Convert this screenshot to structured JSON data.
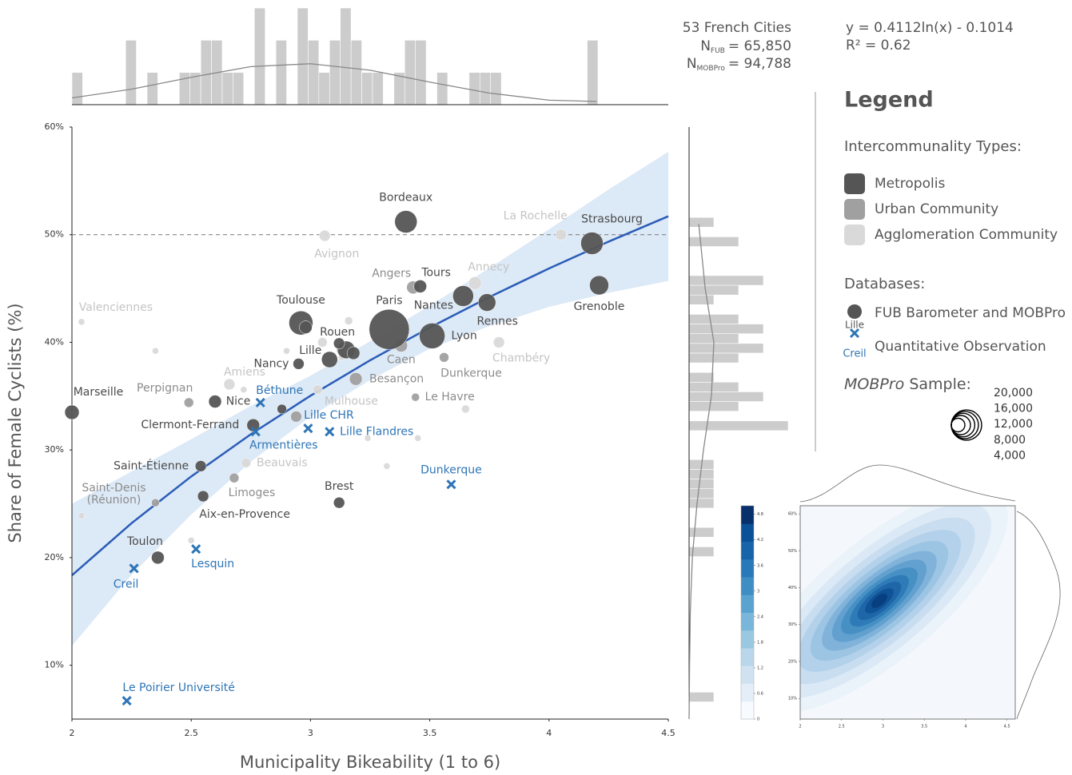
{
  "chart_data": {
    "type": "scatter",
    "x_label": "Municipality Bikeability (1 to 6)",
    "y_label": "Share of Female Cyclists (%)",
    "xlim": [
      2,
      4.5
    ],
    "ylim": [
      5,
      60
    ],
    "xticks": [
      2,
      2.5,
      3,
      3.5,
      4,
      4.5
    ],
    "yticks": [
      {
        "value": 10,
        "label": "10%"
      },
      {
        "value": 20,
        "label": "20%"
      },
      {
        "value": 30,
        "label": "30%"
      },
      {
        "value": 40,
        "label": "40%"
      },
      {
        "value": 50,
        "label": "50%"
      },
      {
        "value": 60,
        "label": "60%"
      }
    ],
    "hline": 50,
    "series": [
      {
        "name": "Metropolis",
        "color": "#555555",
        "label_color": "#4a4a4a",
        "marker": "circle",
        "x": [
          2.0,
          3.4,
          4.18,
          4.21,
          2.96,
          3.33,
          3.51,
          3.64,
          3.74,
          3.46,
          3.15,
          3.08,
          2.95,
          2.6,
          2.76,
          2.54,
          2.55,
          2.36,
          3.12,
          2.98,
          2.88,
          3.12,
          3.18
        ],
        "values": [
          33.5,
          51.2,
          49.2,
          45.3,
          41.8,
          41.2,
          40.6,
          44.3,
          43.7,
          45.2,
          39.3,
          38.4,
          38.0,
          34.5,
          32.3,
          28.5,
          25.7,
          20.0,
          25.1,
          41.4,
          33.8,
          39.9,
          39.0
        ],
        "sizes": [
          4500,
          10900,
          10900,
          8000,
          12500,
          35000,
          14300,
          9400,
          6700,
          3600,
          6700,
          5600,
          2700,
          3600,
          3600,
          2700,
          2700,
          3600,
          2700,
          3600,
          2000,
          2700,
          3600
        ],
        "labels": [
          "Marseille",
          "Bordeaux",
          "Strasbourg",
          "Grenoble",
          "Toulouse",
          "Paris",
          "Lyon",
          "Nantes",
          "Rennes",
          "Tours",
          "Rouen",
          "Lille",
          "Nancy",
          "Nice",
          "Clermont-Ferrand",
          "Saint-Étienne",
          "Aix-en-Provence",
          "Toulon",
          "Brest",
          null,
          null,
          null,
          null
        ]
      },
      {
        "name": "Urban Community",
        "color": "#a0a0a0",
        "label_color": "#8c8c8c",
        "marker": "circle",
        "x": [
          3.43,
          3.38,
          3.19,
          3.56,
          3.44,
          2.68,
          2.49,
          2.35,
          2.94,
          3.14
        ],
        "values": [
          45.1,
          39.7,
          36.6,
          38.6,
          34.9,
          27.4,
          34.4,
          25.1,
          33.1,
          39.3
        ],
        "sizes": [
          3600,
          3600,
          3600,
          2000,
          1400,
          2000,
          2000,
          1400,
          2700,
          4500
        ],
        "labels": [
          "Angers",
          "Caen",
          "Besançon",
          "Dunkerque",
          "Le Havre",
          "Limoges",
          "Perpignan",
          "Saint-Denis\n(Réunion)",
          null,
          null
        ]
      },
      {
        "name": "Agglomeration Community",
        "color": "#d9d9d9",
        "label_color": "#c4c4c4",
        "marker": "circle",
        "x": [
          4.05,
          3.06,
          3.69,
          3.79,
          2.04,
          2.66,
          2.73,
          3.03,
          2.35,
          2.9,
          3.16,
          3.05,
          2.72,
          3.24,
          3.45,
          3.32,
          3.65,
          2.5,
          2.04,
          3.13
        ],
        "values": [
          50.0,
          49.9,
          45.5,
          40.0,
          41.9,
          36.1,
          28.8,
          35.6,
          39.2,
          39.2,
          42.0,
          40.0,
          35.6,
          31.1,
          31.1,
          28.5,
          33.8,
          21.6,
          23.9,
          38.6
        ],
        "sizes": [
          2700,
          2700,
          3600,
          2700,
          900,
          2700,
          2000,
          2000,
          900,
          900,
          1400,
          2000,
          900,
          900,
          900,
          900,
          1400,
          900,
          900,
          900
        ],
        "labels": [
          "La Rochelle",
          "Avignon",
          "Annecy",
          "Chambéry",
          "Valenciennes",
          "Amiens",
          "Beauvais",
          "Mulhouse",
          null,
          null,
          null,
          null,
          null,
          null,
          null,
          null,
          null,
          null,
          null,
          null
        ]
      },
      {
        "name": "Quantitative Observation",
        "color": "#2e75b6",
        "label_color": "#2e75b6",
        "marker": "x",
        "x": [
          2.79,
          2.99,
          3.08,
          2.77,
          3.59,
          2.52,
          2.26,
          2.23
        ],
        "values": [
          34.4,
          32.0,
          31.7,
          31.7,
          26.8,
          20.8,
          19.0,
          6.7
        ],
        "labels": [
          "Béthune",
          "Lille CHR",
          "Lille Flandres",
          "Armentières",
          "Dunkerque",
          "Lesquin",
          "Creil",
          "Le Poirier Université"
        ]
      }
    ],
    "fit": {
      "color": "#2a5cb8",
      "band_color": "#dce9f6",
      "x": [
        2,
        2.25,
        2.5,
        2.75,
        3,
        3.25,
        3.5,
        3.75,
        4,
        4.25,
        4.5
      ],
      "values": [
        18.36,
        23.2,
        27.54,
        31.46,
        35.04,
        38.33,
        41.37,
        44.21,
        46.86,
        49.36,
        51.71
      ],
      "ci_high": [
        25.0,
        28.0,
        31.0,
        34.1,
        36.9,
        40.1,
        43.4,
        46.9,
        50.5,
        54.2,
        57.7
      ],
      "ci_low": [
        11.8,
        18.4,
        24.0,
        28.9,
        33.1,
        36.5,
        39.4,
        41.5,
        43.3,
        44.6,
        45.7
      ]
    },
    "top_histogram": {
      "type": "histogram",
      "color": "#cccccc",
      "ylim": [
        0,
        3
      ],
      "bins": [
        2,
        2.045,
        2.09,
        2.135,
        2.18,
        2.225,
        2.27,
        2.315,
        2.36,
        2.405,
        2.45,
        2.495,
        2.54,
        2.585,
        2.63,
        2.675,
        2.72,
        2.765,
        2.81,
        2.855,
        2.9,
        2.945,
        2.99,
        3.035,
        3.08,
        3.125,
        3.17,
        3.215,
        3.26,
        3.305,
        3.35,
        3.395,
        3.44,
        3.485,
        3.53,
        3.575,
        3.62,
        3.665,
        3.71,
        3.755,
        3.8,
        3.845,
        3.89,
        3.935,
        3.98,
        4.025,
        4.07,
        4.115,
        4.16,
        4.205
      ],
      "counts": [
        1,
        0,
        0,
        0,
        0,
        2,
        0,
        1,
        0,
        0,
        1,
        1,
        2,
        2,
        1,
        1,
        0,
        3,
        0,
        2,
        0,
        3,
        2,
        1,
        2,
        3,
        2,
        1,
        1,
        0,
        1,
        2,
        2,
        0,
        1,
        0,
        0,
        1,
        1,
        1,
        0,
        0,
        0,
        0,
        0,
        0,
        0,
        0,
        2
      ],
      "kde_x": [
        2,
        2.25,
        2.5,
        2.75,
        3,
        3.25,
        3.5,
        3.75,
        4,
        4.2
      ],
      "kde": [
        0.21,
        0.48,
        0.85,
        1.18,
        1.27,
        1.07,
        0.7,
        0.36,
        0.14,
        0.1
      ]
    },
    "right_histogram": {
      "type": "histogram",
      "color": "#cccccc",
      "xlim": [
        0,
        4
      ],
      "bins": [
        6.6,
        7.5,
        8.4,
        9.3,
        10.2,
        11.1,
        12,
        12.9,
        13.8,
        14.7,
        15.6,
        16.5,
        17.4,
        18.3,
        19.2,
        20.1,
        21,
        21.9,
        22.8,
        23.7,
        24.6,
        25.5,
        26.4,
        27.3,
        28.2,
        29.1,
        30,
        30.9,
        31.8,
        32.7,
        33.6,
        34.5,
        35.4,
        36.3,
        37.2,
        38.1,
        39,
        39.9,
        40.8,
        41.7,
        42.6,
        43.5,
        44.4,
        45.3,
        46.2,
        47.1,
        48,
        48.9,
        49.8,
        50.7,
        51.6
      ],
      "counts": [
        1,
        0,
        0,
        0,
        0,
        0,
        0,
        0,
        0,
        0,
        0,
        0,
        0,
        0,
        0,
        1,
        0,
        1,
        0,
        0,
        1,
        1,
        1,
        1,
        1,
        0,
        0,
        0,
        4,
        0,
        2,
        3,
        2,
        1,
        0,
        2,
        3,
        2,
        3,
        2,
        0,
        1,
        2,
        3,
        0,
        0,
        0,
        2,
        0,
        1
      ],
      "kde_y": [
        51,
        45,
        40,
        35,
        30,
        25,
        20,
        15,
        10,
        5
      ],
      "kde": [
        0.39,
        0.65,
        1.0,
        0.9,
        0.58,
        0.32,
        0.13,
        0.05,
        0.02,
        0
      ]
    },
    "size_legend": [
      {
        "value": 20000,
        "label": "20,000"
      },
      {
        "value": 16000,
        "label": "16,000"
      },
      {
        "value": 12000,
        "label": "12,000"
      },
      {
        "value": 8000,
        "label": "8,000"
      },
      {
        "value": 4000,
        "label": "4,000"
      }
    ]
  },
  "stats": {
    "title": "53 French Cities",
    "n_fub": {
      "symbol": "N",
      "subscript": "FUB",
      "text": "= 65,850"
    },
    "n_mobpro": {
      "symbol": "N",
      "subscript": "MOBPro",
      "text": "= 94,788"
    },
    "equation": "y = 0.4112ln(x) - 0.1014",
    "r2": "R² = 0.62"
  },
  "legend": {
    "title": "Legend",
    "types_title": "Intercommunality Types:",
    "databases_title": "Databases:",
    "fub_entry": "FUB Barometer and MOBPro",
    "fub_example": "Lille",
    "quant_example": "Creil",
    "sample_title_italic": "MOBPro",
    "sample_title": " Sample:"
  },
  "kde_inset": {
    "type": "kde",
    "xlim": [
      2,
      4.6
    ],
    "ylim": [
      4.4,
      62.2
    ],
    "xticks": [
      2,
      2.5,
      3,
      3.5,
      4,
      4.5
    ],
    "yticks": [
      {
        "value": 10,
        "label": "10%"
      },
      {
        "value": 20,
        "label": "20%"
      },
      {
        "value": 30,
        "label": "30%"
      },
      {
        "value": 40,
        "label": "40%"
      },
      {
        "value": 50,
        "label": "50%"
      },
      {
        "value": 60,
        "label": "60%"
      }
    ],
    "clim": [
      0,
      5
    ],
    "colorbar_ticks": [
      0,
      0.6,
      1.2,
      1.8,
      2.4,
      3,
      3.6,
      4.2,
      4.8
    ]
  }
}
